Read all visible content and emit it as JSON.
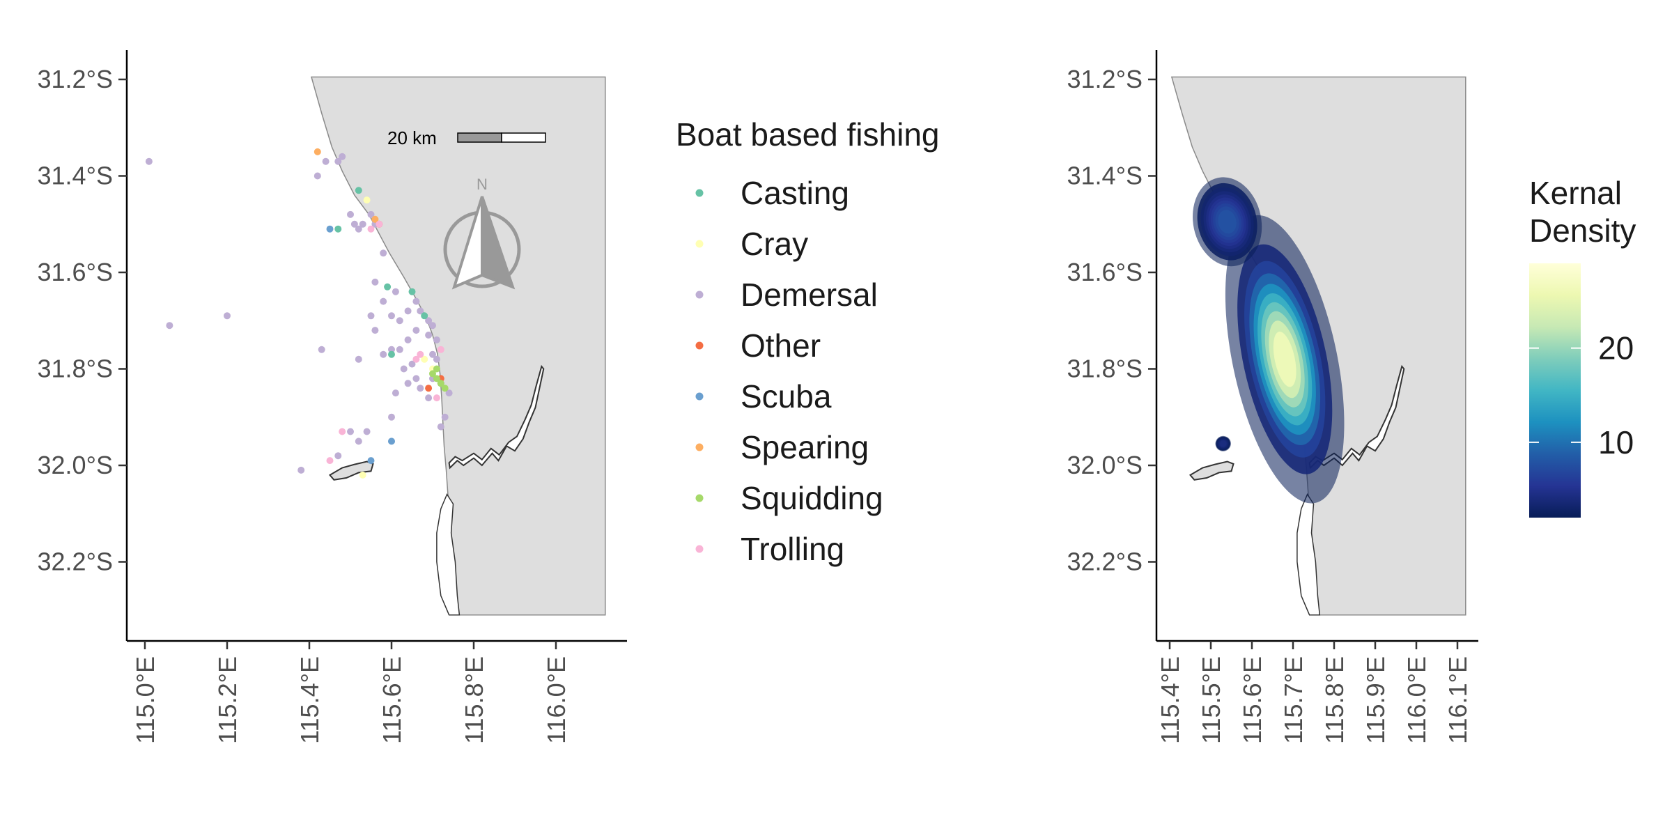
{
  "left_panel": {
    "y_ticks": [
      {
        "lat": -31.2,
        "label": "31.2°S"
      },
      {
        "lat": -31.4,
        "label": "31.4°S"
      },
      {
        "lat": -31.6,
        "label": "31.6°S"
      },
      {
        "lat": -31.8,
        "label": "31.8°S"
      },
      {
        "lat": -32.0,
        "label": "32.0°S"
      },
      {
        "lat": -32.2,
        "label": "32.2°S"
      }
    ],
    "x_ticks": [
      {
        "lon": 115.0,
        "label": "115.0°E"
      },
      {
        "lon": 115.2,
        "label": "115.2°E"
      },
      {
        "lon": 115.4,
        "label": "115.4°E"
      },
      {
        "lon": 115.6,
        "label": "115.6°E"
      },
      {
        "lon": 115.8,
        "label": "115.8°E"
      },
      {
        "lon": 116.0,
        "label": "116.0°E"
      }
    ],
    "scale_bar_label": "20 km",
    "north_arrow_label": "N",
    "legend": {
      "title": "Boat based fishing",
      "items": [
        {
          "label": "Casting",
          "color": "#66c2a5"
        },
        {
          "label": "Cray",
          "color": "#ffffb3"
        },
        {
          "label": "Demersal",
          "color": "#beaed4"
        },
        {
          "label": "Other",
          "color": "#f46d43"
        },
        {
          "label": "Scuba",
          "color": "#6a9fcf"
        },
        {
          "label": "Spearing",
          "color": "#fdae61"
        },
        {
          "label": "Squidding",
          "color": "#a6d96a"
        },
        {
          "label": "Trolling",
          "color": "#f9b4d6"
        }
      ]
    }
  },
  "right_panel": {
    "y_ticks": [
      {
        "lat": -31.2,
        "label": "31.2°S"
      },
      {
        "lat": -31.4,
        "label": "31.4°S"
      },
      {
        "lat": -31.6,
        "label": "31.6°S"
      },
      {
        "lat": -31.8,
        "label": "31.8°S"
      },
      {
        "lat": -32.0,
        "label": "32.0°S"
      },
      {
        "lat": -32.2,
        "label": "32.2°S"
      }
    ],
    "x_ticks": [
      {
        "lon": 115.4,
        "label": "115.4°E"
      },
      {
        "lon": 115.5,
        "label": "115.5°E"
      },
      {
        "lon": 115.6,
        "label": "115.6°E"
      },
      {
        "lon": 115.7,
        "label": "115.7°E"
      },
      {
        "lon": 115.8,
        "label": "115.8°E"
      },
      {
        "lon": 115.9,
        "label": "115.9°E"
      },
      {
        "lon": 116.0,
        "label": "116.0°E"
      },
      {
        "lon": 116.1,
        "label": "116.1°E"
      }
    ],
    "legend": {
      "title_line1": "Kernal",
      "title_line2": "Density",
      "ticks": [
        {
          "value": 10,
          "label": "10"
        },
        {
          "value": 20,
          "label": "20"
        }
      ],
      "range": [
        2,
        29
      ],
      "colors": [
        "#081d58",
        "#253494",
        "#225ea8",
        "#1d91c0",
        "#41b6c4",
        "#7fcdbb",
        "#c7e9b4",
        "#edf8b1",
        "#ffffd9"
      ]
    },
    "hotspots": [
      {
        "lon": 115.68,
        "lat": -31.78,
        "peak": 29,
        "spread_lon": 0.05,
        "spread_lat": 0.12
      },
      {
        "lon": 115.54,
        "lat": -31.495,
        "peak": 8,
        "spread_lon": 0.04,
        "spread_lat": 0.045
      },
      {
        "lon": 115.53,
        "lat": -31.955,
        "peak": 3,
        "spread_lon": 0.012,
        "spread_lat": 0.01
      }
    ]
  },
  "chart_data": [
    {
      "type": "scatter",
      "legend_title": "Boat based fishing",
      "xlim": [
        114.96,
        116.18
      ],
      "ylim": [
        -32.36,
        -31.13
      ],
      "legend_position": "right",
      "grid": false,
      "series": [
        {
          "name": "Demersal",
          "points": [
            [
              115.01,
              -31.37
            ],
            [
              115.06,
              -31.71
            ],
            [
              115.2,
              -31.69
            ],
            [
              115.42,
              -31.4
            ],
            [
              115.44,
              -31.37
            ],
            [
              115.47,
              -31.37
            ],
            [
              115.48,
              -31.36
            ],
            [
              115.5,
              -31.48
            ],
            [
              115.51,
              -31.5
            ],
            [
              115.52,
              -31.51
            ],
            [
              115.53,
              -31.5
            ],
            [
              115.55,
              -31.48
            ],
            [
              115.56,
              -31.5
            ],
            [
              115.58,
              -31.56
            ],
            [
              115.56,
              -31.62
            ],
            [
              115.58,
              -31.66
            ],
            [
              115.6,
              -31.69
            ],
            [
              115.61,
              -31.64
            ],
            [
              115.62,
              -31.7
            ],
            [
              115.64,
              -31.68
            ],
            [
              115.66,
              -31.66
            ],
            [
              115.67,
              -31.68
            ],
            [
              115.69,
              -31.7
            ],
            [
              115.7,
              -31.71
            ],
            [
              115.69,
              -31.73
            ],
            [
              115.71,
              -31.74
            ],
            [
              115.66,
              -31.72
            ],
            [
              115.64,
              -31.74
            ],
            [
              115.62,
              -31.76
            ],
            [
              115.6,
              -31.76
            ],
            [
              115.58,
              -31.77
            ],
            [
              115.56,
              -31.72
            ],
            [
              115.55,
              -31.69
            ],
            [
              115.52,
              -31.78
            ],
            [
              115.63,
              -31.8
            ],
            [
              115.66,
              -31.82
            ],
            [
              115.65,
              -31.79
            ],
            [
              115.67,
              -31.84
            ],
            [
              115.7,
              -31.82
            ],
            [
              115.72,
              -31.83
            ],
            [
              115.74,
              -31.85
            ],
            [
              115.69,
              -31.86
            ],
            [
              115.64,
              -31.83
            ],
            [
              115.61,
              -31.85
            ],
            [
              115.6,
              -31.9
            ],
            [
              115.73,
              -31.9
            ],
            [
              115.72,
              -31.92
            ],
            [
              115.43,
              -31.76
            ],
            [
              115.5,
              -31.93
            ],
            [
              115.52,
              -31.95
            ],
            [
              115.54,
              -31.93
            ],
            [
              115.47,
              -31.98
            ],
            [
              115.38,
              -32.01
            ],
            [
              115.7,
              -31.77
            ],
            [
              115.71,
              -31.78
            ]
          ]
        },
        {
          "name": "Casting",
          "points": [
            [
              115.52,
              -31.43
            ],
            [
              115.47,
              -31.51
            ],
            [
              115.59,
              -31.63
            ],
            [
              115.65,
              -31.64
            ],
            [
              115.6,
              -31.77
            ],
            [
              115.68,
              -31.69
            ]
          ]
        },
        {
          "name": "Cray",
          "points": [
            [
              115.54,
              -31.45
            ],
            [
              115.53,
              -32.02
            ],
            [
              115.68,
              -31.78
            ],
            [
              115.7,
              -31.8
            ]
          ]
        },
        {
          "name": "Other",
          "points": [
            [
              115.57,
              -31.5
            ],
            [
              115.69,
              -31.84
            ],
            [
              115.72,
              -31.82
            ]
          ]
        },
        {
          "name": "Scuba",
          "points": [
            [
              115.45,
              -31.51
            ],
            [
              115.55,
              -31.99
            ],
            [
              115.6,
              -31.95
            ]
          ]
        },
        {
          "name": "Spearing",
          "points": [
            [
              115.42,
              -31.35
            ],
            [
              115.56,
              -31.49
            ]
          ]
        },
        {
          "name": "Squidding",
          "points": [
            [
              115.7,
              -31.81
            ],
            [
              115.71,
              -31.82
            ],
            [
              115.72,
              -31.83
            ],
            [
              115.73,
              -31.84
            ],
            [
              115.71,
              -31.8
            ]
          ]
        },
        {
          "name": "Trolling",
          "points": [
            [
              115.55,
              -31.51
            ],
            [
              115.66,
              -31.78
            ],
            [
              115.67,
              -31.77
            ],
            [
              115.72,
              -31.76
            ],
            [
              115.71,
              -31.86
            ],
            [
              115.48,
              -31.93
            ],
            [
              115.45,
              -31.99
            ],
            [
              115.57,
              -31.5
            ]
          ]
        }
      ]
    },
    {
      "type": "heatmap",
      "legend_title": "Kernal Density",
      "xlim": [
        115.37,
        116.155
      ],
      "ylim": [
        -32.36,
        -31.13
      ],
      "legend_position": "right",
      "grid": false
    }
  ]
}
